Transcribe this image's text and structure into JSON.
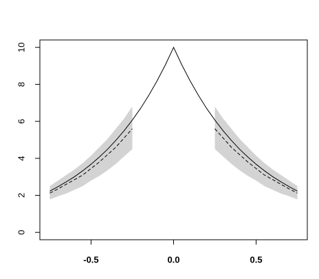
{
  "chart_data": {
    "type": "line",
    "x": [
      -0.75,
      -0.7,
      -0.65,
      -0.6,
      -0.55,
      -0.5,
      -0.45,
      -0.4,
      -0.35,
      -0.3,
      -0.25,
      -0.2,
      -0.15,
      -0.1,
      -0.05,
      0,
      0.05,
      0.1,
      0.15,
      0.2,
      0.25,
      0.3,
      0.35,
      0.4,
      0.45,
      0.5,
      0.55,
      0.6,
      0.65,
      0.7,
      0.75
    ],
    "series": [
      {
        "color": "#000000",
        "style": "solid",
        "values": [
          2.23,
          2.47,
          2.73,
          3.01,
          3.33,
          3.68,
          4.07,
          4.49,
          4.97,
          5.49,
          6.07,
          6.7,
          7.41,
          8.19,
          9.05,
          10,
          9.05,
          8.19,
          7.41,
          6.7,
          6.07,
          5.49,
          4.97,
          4.49,
          4.07,
          3.68,
          3.33,
          3.01,
          2.73,
          2.47,
          2.23
        ]
      },
      {
        "color": "#000000",
        "style": "dashed",
        "values": [
          2.12,
          2.35,
          2.6,
          2.85,
          3.1,
          3.45,
          3.8,
          4.2,
          4.6,
          5.1,
          5.6,
          null,
          null,
          null,
          null,
          null,
          null,
          null,
          null,
          null,
          5.6,
          5.1,
          4.6,
          4.2,
          3.8,
          3.45,
          3.1,
          2.85,
          2.6,
          2.35,
          2.12
        ]
      }
    ],
    "band": {
      "color": "#d3d3d3",
      "lower": [
        1.78,
        1.95,
        2.1,
        2.3,
        2.5,
        2.8,
        3.05,
        3.35,
        3.7,
        4.1,
        4.5,
        null,
        null,
        null,
        null,
        null,
        null,
        null,
        null,
        null,
        4.5,
        4.1,
        3.7,
        3.35,
        3.05,
        2.8,
        2.5,
        2.3,
        2.1,
        1.95,
        1.78
      ],
      "upper": [
        2.5,
        2.8,
        3.1,
        3.4,
        3.75,
        4.15,
        4.6,
        5.05,
        5.6,
        6.15,
        6.8,
        null,
        null,
        null,
        null,
        null,
        null,
        null,
        null,
        null,
        6.8,
        6.15,
        5.6,
        5.05,
        4.6,
        4.15,
        3.75,
        3.4,
        3.1,
        2.8,
        2.5
      ]
    },
    "xlim": [
      -0.81,
      0.81
    ],
    "ylim": [
      -0.4,
      10.4
    ],
    "xticks": [
      {
        "value": -0.5,
        "label": "-0.5"
      },
      {
        "value": 0,
        "label": "0.0"
      },
      {
        "value": 0.5,
        "label": "0.5"
      }
    ],
    "yticks": [
      0,
      2,
      4,
      6,
      8,
      10
    ]
  }
}
